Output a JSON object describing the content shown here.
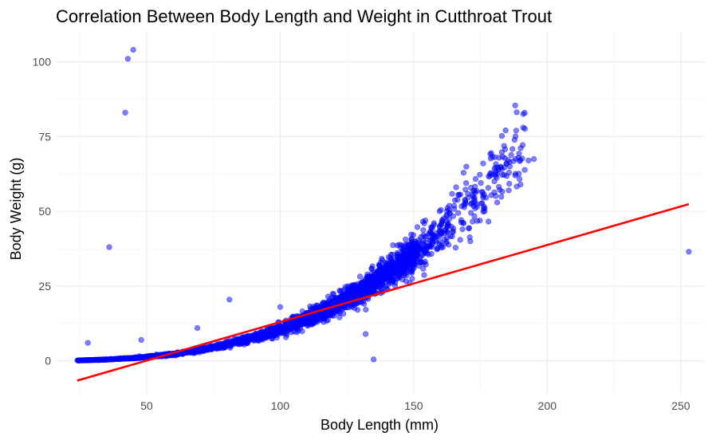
{
  "chart_data": {
    "type": "scatter",
    "title": "Correlation Between Body Length and Weight in Cutthroat Trout",
    "xlabel": "Body Length (mm)",
    "ylabel": "Body Weight (g)",
    "xlim": [
      16,
      259
    ],
    "ylim": [
      -11,
      110
    ],
    "x_ticks": [
      50,
      100,
      150,
      200,
      250
    ],
    "y_ticks": [
      0,
      25,
      50,
      75,
      100
    ],
    "x_minor_ticks": [
      25,
      75,
      125,
      175,
      225
    ],
    "y_minor_ticks": [
      12.5,
      37.5,
      62.5,
      87.5
    ],
    "grid": true,
    "legend": "none",
    "point_color": "#0000ff",
    "point_opacity": 0.5,
    "trend_color": "#ff0000",
    "series": [
      {
        "kind": "points",
        "trend": "allometric",
        "a": 1.06e-05,
        "b": 3.0,
        "x_range": [
          24,
          192
        ],
        "n_points": 2600,
        "outliers": [
          [
            43,
            101
          ],
          [
            45,
            104
          ],
          [
            42,
            83
          ],
          [
            36,
            38
          ],
          [
            81,
            20.5
          ],
          [
            135,
            0.5
          ],
          [
            253,
            36.5
          ],
          [
            28,
            6
          ],
          [
            191,
            78
          ],
          [
            186,
            65
          ],
          [
            188,
            62
          ],
          [
            193,
            67
          ],
          [
            195,
            67.5
          ],
          [
            190,
            59
          ],
          [
            176,
            66
          ],
          [
            183,
            64
          ],
          [
            69,
            11
          ],
          [
            48,
            7
          ],
          [
            132,
            9
          ],
          [
            100,
            18
          ]
        ]
      },
      {
        "kind": "linear_fit",
        "x": [
          24,
          253
        ],
        "y": [
          -6.6,
          52.4
        ]
      }
    ]
  }
}
